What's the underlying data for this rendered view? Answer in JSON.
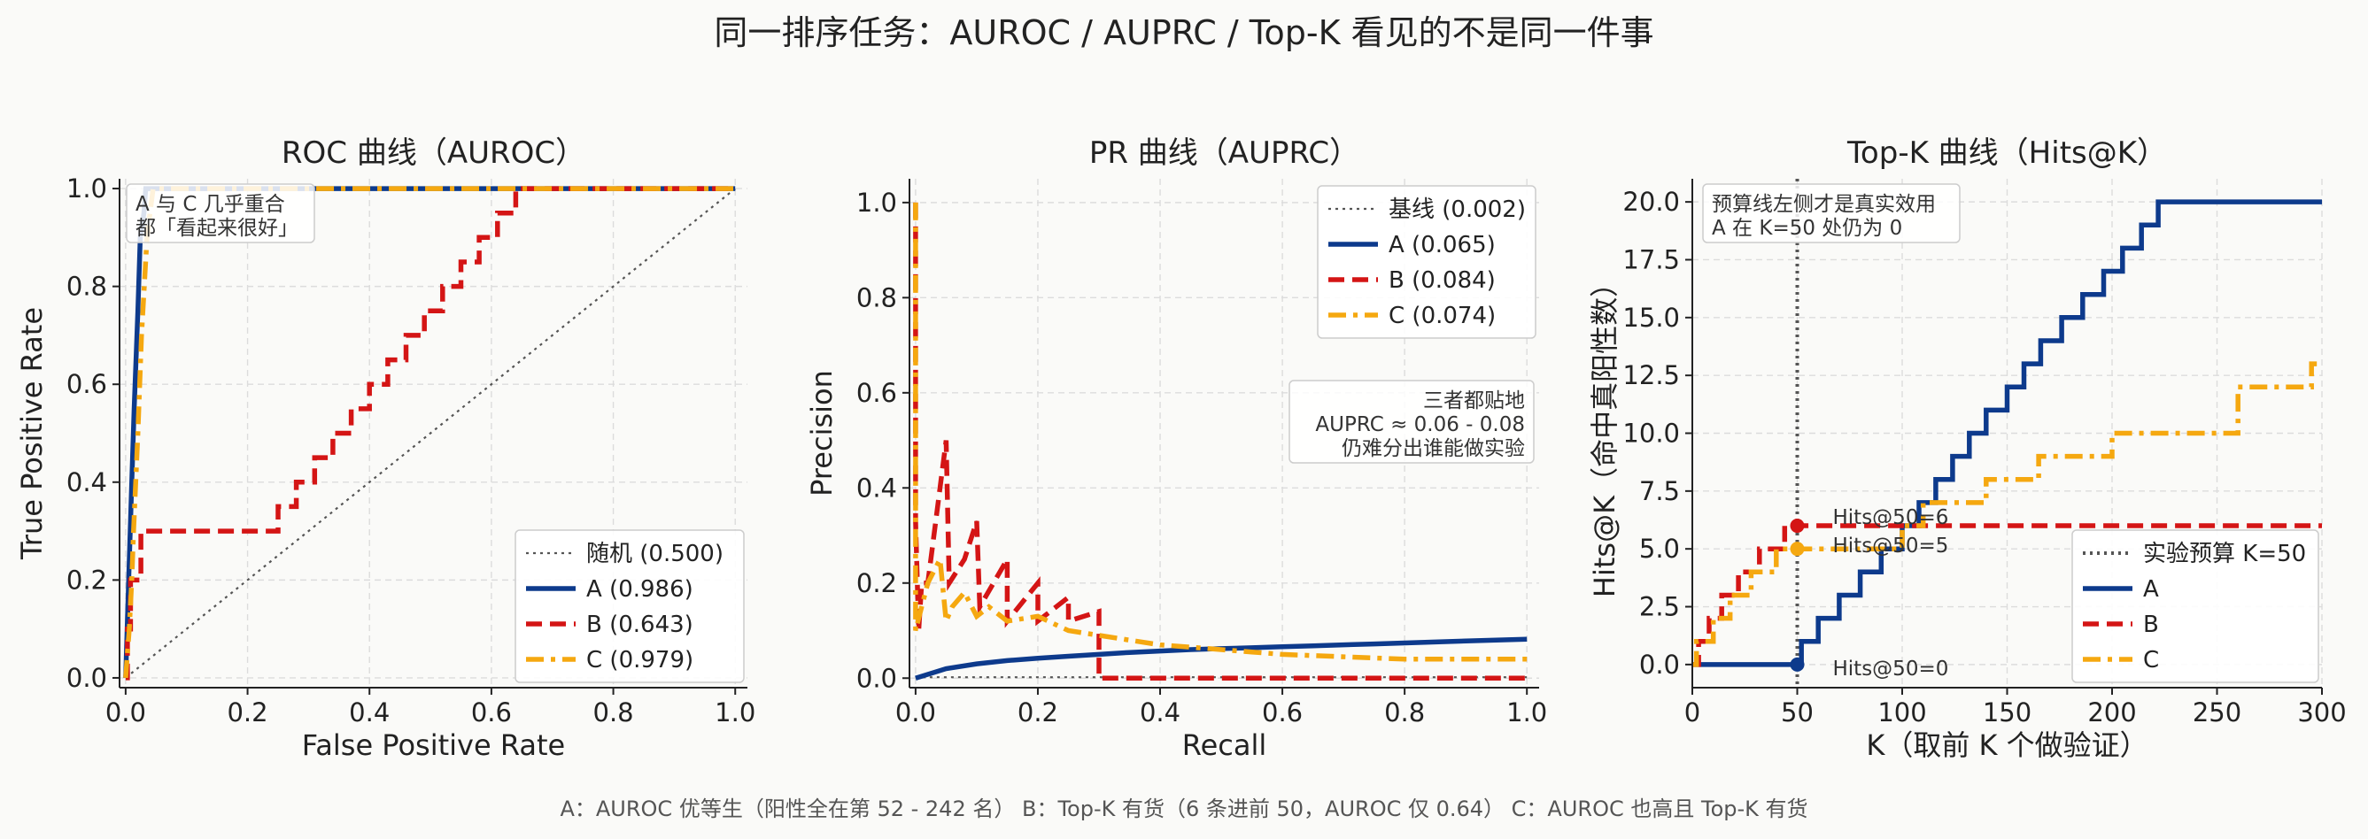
{
  "suptitle": "同一排序任务：AUROC / AUPRC / Top-K 看见的不是同一件事",
  "footer": "A：AUROC 优等生（阳性全在第 52 - 242 名）    B：Top-K 有货（6 条进前 50，AUROC 仅 0.64）    C：AUROC 也高且 Top-K 有货",
  "colors": {
    "A": "#0d3a8c",
    "B": "#d41515",
    "C": "#f5a810",
    "ref": "#555555"
  },
  "chart_data": [
    {
      "type": "line",
      "title": "ROC 曲线（AUROC）",
      "xlabel": "False Positive Rate",
      "ylabel": "True Positive Rate",
      "xlim": [
        -0.01,
        1.02
      ],
      "ylim": [
        -0.02,
        1.02
      ],
      "xticks": [
        "0.0",
        "0.2",
        "0.4",
        "0.6",
        "0.8",
        "1.0"
      ],
      "yticks": [
        "0.0",
        "0.2",
        "0.4",
        "0.6",
        "0.8",
        "1.0"
      ],
      "grid": true,
      "legend_position": "lower-right",
      "annotation": [
        "A 与 C 几乎重合",
        "都「看起来很好」"
      ],
      "series": [
        {
          "name": "随机 (0.500)",
          "key": "ref",
          "style": "dotted",
          "x": [
            0,
            1
          ],
          "y": [
            0,
            1
          ]
        },
        {
          "name": "A (0.986)",
          "key": "A",
          "style": "solid",
          "x": [
            0,
            0.005,
            0.01,
            0.014,
            0.02,
            0.024,
            0.03,
            0.033,
            1.0
          ],
          "y": [
            0,
            0.2,
            0.4,
            0.55,
            0.75,
            0.9,
            0.95,
            1.0,
            1.0
          ]
        },
        {
          "name": "B (0.643)",
          "key": "B",
          "style": "dashed",
          "x": [
            0,
            0.003,
            0.003,
            0.008,
            0.008,
            0.025,
            0.025,
            0.25,
            0.25,
            0.28,
            0.28,
            0.31,
            0.31,
            0.34,
            0.34,
            0.37,
            0.37,
            0.4,
            0.4,
            0.43,
            0.43,
            0.46,
            0.46,
            0.49,
            0.49,
            0.52,
            0.52,
            0.55,
            0.55,
            0.58,
            0.58,
            0.61,
            0.61,
            0.64,
            0.64,
            0.67,
            0.67,
            0.7,
            0.7,
            0.73,
            0.73,
            0.76,
            0.76,
            0.78,
            0.78,
            1.0
          ],
          "y": [
            0,
            0,
            0.1,
            0.1,
            0.2,
            0.2,
            0.3,
            0.3,
            0.35,
            0.35,
            0.4,
            0.4,
            0.45,
            0.45,
            0.5,
            0.5,
            0.55,
            0.55,
            0.6,
            0.6,
            0.65,
            0.65,
            0.7,
            0.7,
            0.75,
            0.75,
            0.8,
            0.8,
            0.85,
            0.85,
            0.9,
            0.9,
            0.95,
            0.95,
            1.0,
            1.0,
            1.0,
            1.0,
            1.0,
            1.0,
            1.0,
            1.0,
            1.0,
            1.0,
            1.0,
            1.0
          ]
        },
        {
          "name": "C (0.979)",
          "key": "C",
          "style": "dashdot",
          "x": [
            0,
            0.003,
            0.006,
            0.01,
            0.013,
            0.02,
            0.026,
            0.035,
            0.04,
            0.045,
            1.0
          ],
          "y": [
            0,
            0.05,
            0.1,
            0.2,
            0.3,
            0.5,
            0.7,
            0.9,
            0.95,
            1.0,
            1.0
          ]
        }
      ]
    },
    {
      "type": "line",
      "title": "PR 曲线（AUPRC）",
      "xlabel": "Recall",
      "ylabel": "Precision",
      "xlim": [
        -0.01,
        1.02
      ],
      "ylim": [
        -0.02,
        1.05
      ],
      "xticks": [
        "0.0",
        "0.2",
        "0.4",
        "0.6",
        "0.8",
        "1.0"
      ],
      "yticks": [
        "0.0",
        "0.2",
        "0.4",
        "0.6",
        "0.8",
        "1.0"
      ],
      "grid": true,
      "legend_position": "upper-right",
      "annotation": [
        "三者都贴地",
        "AUPRC ≈ 0.06 - 0.08",
        "仍难分出谁能做实验"
      ],
      "series": [
        {
          "name": "基线 (0.002)",
          "key": "ref",
          "style": "dotted",
          "x": [
            0,
            1
          ],
          "y": [
            0.002,
            0.002
          ]
        },
        {
          "name": "A (0.065)",
          "key": "A",
          "style": "solid",
          "x": [
            0,
            0.05,
            0.1,
            0.15,
            0.2,
            0.25,
            0.3,
            0.35,
            0.4,
            0.45,
            0.5,
            0.55,
            0.6,
            0.65,
            0.7,
            0.75,
            0.8,
            0.85,
            0.9,
            0.95,
            1.0
          ],
          "y": [
            0.0,
            0.02,
            0.03,
            0.037,
            0.042,
            0.046,
            0.05,
            0.054,
            0.057,
            0.06,
            0.062,
            0.064,
            0.066,
            0.068,
            0.07,
            0.072,
            0.074,
            0.076,
            0.078,
            0.08,
            0.082
          ]
        },
        {
          "name": "B (0.084)",
          "key": "B",
          "style": "dashed",
          "x": [
            0,
            0,
            0.005,
            0.01,
            0.02,
            0.03,
            0.04,
            0.05,
            0.055,
            0.08,
            0.1,
            0.105,
            0.15,
            0.15,
            0.2,
            0.2,
            0.25,
            0.25,
            0.3,
            0.3,
            1.0
          ],
          "y": [
            1.0,
            0.33,
            0.1,
            0.2,
            0.2,
            0.3,
            0.4,
            0.5,
            0.2,
            0.25,
            0.33,
            0.15,
            0.25,
            0.12,
            0.2,
            0.12,
            0.17,
            0.12,
            0.14,
            0.0,
            0.0
          ]
        },
        {
          "name": "C (0.074)",
          "key": "C",
          "style": "dashdot",
          "x": [
            0,
            0,
            0.01,
            0.02,
            0.04,
            0.05,
            0.06,
            0.08,
            0.1,
            0.12,
            0.15,
            0.2,
            0.25,
            0.3,
            0.35,
            0.4,
            0.45,
            0.5,
            0.55,
            0.6,
            0.7,
            0.8,
            0.9,
            1.0
          ],
          "y": [
            1.0,
            0.1,
            0.15,
            0.2,
            0.25,
            0.12,
            0.15,
            0.18,
            0.13,
            0.15,
            0.12,
            0.13,
            0.1,
            0.09,
            0.08,
            0.07,
            0.065,
            0.06,
            0.055,
            0.05,
            0.045,
            0.04,
            0.04,
            0.04
          ]
        }
      ]
    },
    {
      "type": "line",
      "title": "Top-K 曲线（Hits@K）",
      "xlabel": "K（取前 K 个做验证）",
      "ylabel": "Hits@K（命中真阳性数）",
      "xlim": [
        0,
        300
      ],
      "ylim": [
        -1.0,
        21.0
      ],
      "xticks": [
        "0",
        "50",
        "100",
        "150",
        "200",
        "250",
        "300"
      ],
      "yticks": [
        "0.0",
        "2.5",
        "5.0",
        "7.5",
        "10.0",
        "12.5",
        "15.0",
        "17.5",
        "20.0"
      ],
      "grid": true,
      "legend_position": "lower-right",
      "annotation": [
        "预算线左侧才是真实效用",
        "A 在 K=50 处仍为 0"
      ],
      "budget_line": {
        "label": "实验预算 K=50",
        "x": 50
      },
      "points": [
        {
          "key": "A",
          "x": 50,
          "y": 0,
          "label": "Hits@50=0"
        },
        {
          "key": "B",
          "x": 50,
          "y": 6,
          "label": "Hits@50=6"
        },
        {
          "key": "C",
          "x": 50,
          "y": 5,
          "label": "Hits@50=5"
        }
      ],
      "series": [
        {
          "name": "A",
          "key": "A",
          "style": "solid",
          "x": [
            0,
            52,
            52,
            60,
            60,
            70,
            70,
            80,
            80,
            90,
            90,
            100,
            100,
            108,
            108,
            116,
            116,
            124,
            124,
            132,
            132,
            140,
            140,
            150,
            150,
            158,
            158,
            166,
            166,
            176,
            176,
            186,
            186,
            196,
            196,
            205,
            205,
            214,
            214,
            222,
            222,
            230,
            230,
            242,
            242,
            300
          ],
          "y": [
            0,
            0,
            1,
            1,
            2,
            2,
            3,
            3,
            4,
            4,
            5,
            5,
            6,
            6,
            7,
            7,
            8,
            8,
            9,
            9,
            10,
            10,
            11,
            11,
            12,
            12,
            13,
            13,
            14,
            14,
            15,
            15,
            16,
            16,
            17,
            17,
            18,
            18,
            19,
            19,
            20,
            20,
            20,
            20,
            20,
            20
          ]
        },
        {
          "name": "B",
          "key": "B",
          "style": "dashed",
          "x": [
            0,
            3,
            3,
            8,
            8,
            14,
            14,
            22,
            22,
            32,
            32,
            44,
            44,
            300
          ],
          "y": [
            0,
            0,
            1,
            1,
            2,
            2,
            3,
            3,
            4,
            4,
            5,
            5,
            6,
            6
          ]
        },
        {
          "name": "C",
          "key": "C",
          "style": "dashdot",
          "x": [
            0,
            2,
            2,
            10,
            10,
            18,
            18,
            28,
            28,
            40,
            40,
            100,
            100,
            110,
            110,
            140,
            140,
            165,
            165,
            200,
            200,
            260,
            260,
            295,
            295,
            300
          ],
          "y": [
            0,
            0,
            1,
            1,
            2,
            2,
            3,
            3,
            4,
            4,
            5,
            5,
            6,
            6,
            7,
            7,
            8,
            8,
            9,
            9,
            10,
            10,
            12,
            12,
            13,
            13
          ]
        }
      ]
    }
  ]
}
